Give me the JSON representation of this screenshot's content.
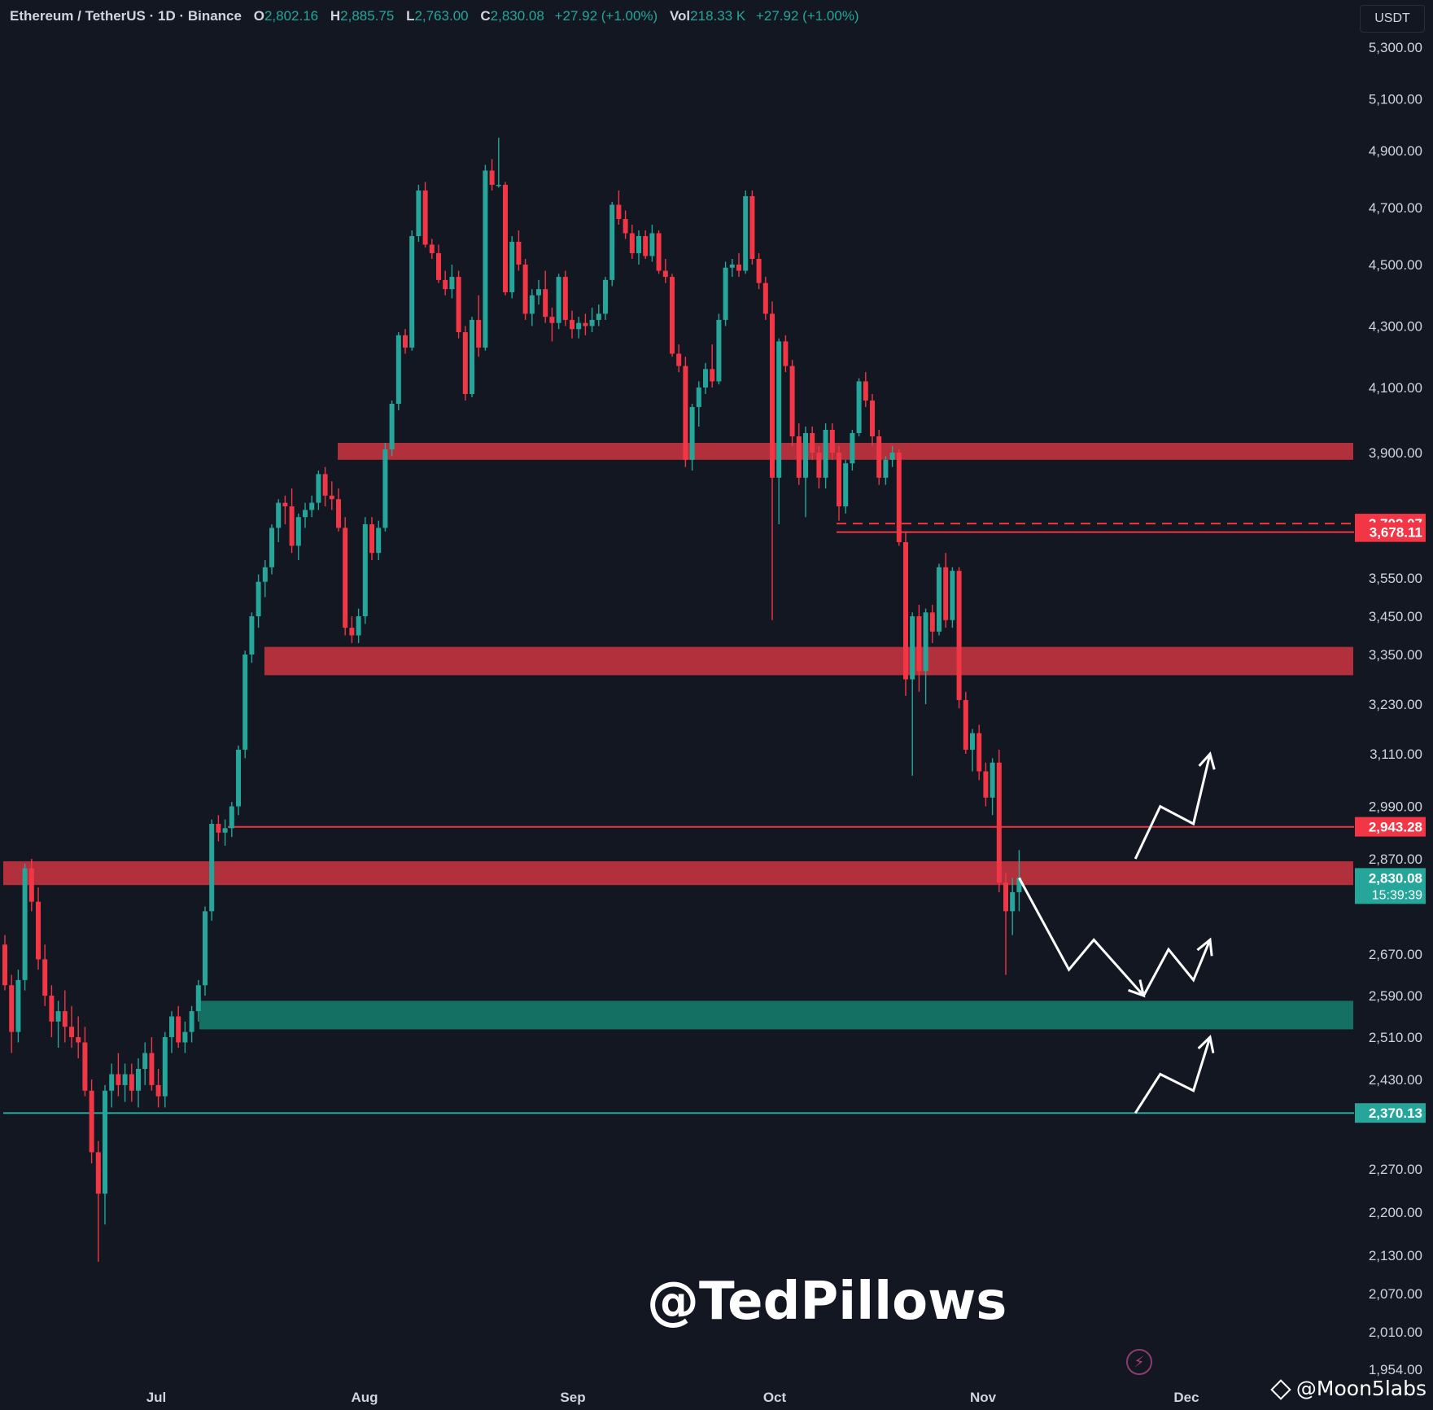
{
  "legend": {
    "symbol": "Ethereum / TetherUS · 1D · Binance",
    "open_label": "O",
    "open": "2,802.16",
    "high_label": "H",
    "high": "2,885.75",
    "low_label": "L",
    "low": "2,763.00",
    "close_label": "C",
    "close": "2,830.08",
    "change": "+27.92 (+1.00%)",
    "vol_label": "Vol",
    "vol": "218.33 K",
    "vol_change": "+27.92 (+1.00%)"
  },
  "unit": "USDT",
  "watermark": "@TedPillows",
  "source": "@Moon5labs",
  "colors": {
    "up": "#26a69a",
    "down": "#f23645",
    "resistance_zone": "#b2303b",
    "support_zone": "#137062",
    "background": "#131722"
  },
  "chart_data": {
    "type": "candlestick",
    "xlabel": "",
    "ylabel": "",
    "ylim": [
      1920,
      5400
    ],
    "y_ticks": [
      "5,300.00",
      "5,100.00",
      "4,900.00",
      "4,700.00",
      "4,500.00",
      "4,300.00",
      "4,100.00",
      "3,900.00",
      "3,550.00",
      "3,450.00",
      "3,350.00",
      "3,230.00",
      "3,110.00",
      "2,990.00",
      "2,870.00",
      "2,670.00",
      "2,590.00",
      "2,510.00",
      "2,430.00",
      "2,270.00",
      "2,200.00",
      "2,130.00",
      "2,070.00",
      "2,010.00",
      "1,954.00"
    ],
    "x_ticks": [
      "Jul",
      "Aug",
      "Sep",
      "Oct",
      "Nov",
      "Dec"
    ],
    "price_tags": [
      {
        "label": "3,702.07",
        "value": 3702.07,
        "kind": "down"
      },
      {
        "label": "3,678.11",
        "value": 3678.11,
        "kind": "down"
      },
      {
        "label": "2,943.28",
        "value": 2943.28,
        "kind": "down"
      },
      {
        "label": "2,830.08",
        "value": 2830.08,
        "kind": "up",
        "countdown": "15:39:39"
      },
      {
        "label": "2,370.13",
        "value": 2370.13,
        "kind": "up"
      }
    ],
    "zones": [
      {
        "kind": "resistance",
        "low": 3880,
        "high": 3930,
        "start": "Jul 27"
      },
      {
        "kind": "resistance",
        "low": 3300,
        "high": 3370,
        "start": "Jul 12"
      },
      {
        "kind": "resistance",
        "low": 2815,
        "high": 2865,
        "start": "Jun 10"
      },
      {
        "kind": "support",
        "low": 2525,
        "high": 2580,
        "start": "Jul 2"
      }
    ],
    "hlines": [
      {
        "value": 3702,
        "style": "dashed",
        "color": "#f23645",
        "start": "Oct 9"
      },
      {
        "value": 3678,
        "style": "solid",
        "color": "#f23645",
        "start": "Oct 9"
      },
      {
        "value": 2943,
        "style": "solid",
        "color": "#f23645",
        "start": "Jul 4"
      },
      {
        "value": 2370,
        "style": "solid",
        "color": "#26a69a",
        "start": "Jun 10"
      }
    ],
    "projections": [
      {
        "color": "#ffffff",
        "points": [
          [
            2830,
            0
          ],
          [
            2640,
            6
          ],
          [
            2700,
            9
          ],
          [
            2590,
            15
          ]
        ]
      },
      {
        "color": "#ffffff",
        "points": [
          [
            2590,
            15
          ],
          [
            2680,
            18
          ],
          [
            2620,
            21
          ],
          [
            2700,
            23
          ]
        ]
      },
      {
        "color": "#ffffff",
        "points": [
          [
            2870,
            14
          ],
          [
            2990,
            17
          ],
          [
            2950,
            21
          ],
          [
            3110,
            23
          ]
        ]
      },
      {
        "color": "#ffffff",
        "points": [
          [
            2370,
            14
          ],
          [
            2440,
            17
          ],
          [
            2410,
            21
          ],
          [
            2510,
            23
          ]
        ]
      }
    ],
    "candles": [
      [
        2690,
        2710,
        2600,
        2610
      ],
      [
        2610,
        2630,
        2480,
        2520
      ],
      [
        2520,
        2640,
        2500,
        2620
      ],
      [
        2620,
        2860,
        2600,
        2850
      ],
      [
        2850,
        2870,
        2760,
        2780
      ],
      [
        2780,
        2810,
        2640,
        2660
      ],
      [
        2660,
        2690,
        2570,
        2590
      ],
      [
        2590,
        2610,
        2510,
        2540
      ],
      [
        2540,
        2580,
        2490,
        2560
      ],
      [
        2560,
        2600,
        2500,
        2530
      ],
      [
        2530,
        2570,
        2490,
        2510
      ],
      [
        2510,
        2550,
        2470,
        2500
      ],
      [
        2500,
        2530,
        2400,
        2410
      ],
      [
        2410,
        2430,
        2280,
        2300
      ],
      [
        2300,
        2320,
        2120,
        2230
      ],
      [
        2230,
        2420,
        2180,
        2410
      ],
      [
        2410,
        2460,
        2380,
        2440
      ],
      [
        2440,
        2480,
        2400,
        2420
      ],
      [
        2420,
        2460,
        2390,
        2440
      ],
      [
        2440,
        2460,
        2390,
        2410
      ],
      [
        2410,
        2470,
        2380,
        2450
      ],
      [
        2450,
        2500,
        2420,
        2480
      ],
      [
        2480,
        2510,
        2410,
        2420
      ],
      [
        2420,
        2450,
        2380,
        2400
      ],
      [
        2400,
        2520,
        2380,
        2510
      ],
      [
        2510,
        2560,
        2480,
        2550
      ],
      [
        2550,
        2570,
        2490,
        2500
      ],
      [
        2500,
        2540,
        2480,
        2520
      ],
      [
        2520,
        2570,
        2500,
        2560
      ],
      [
        2560,
        2620,
        2540,
        2610
      ],
      [
        2610,
        2770,
        2590,
        2760
      ],
      [
        2760,
        2960,
        2740,
        2950
      ],
      [
        2950,
        2970,
        2910,
        2930
      ],
      [
        2930,
        2960,
        2900,
        2940
      ],
      [
        2940,
        3000,
        2920,
        2990
      ],
      [
        2990,
        3130,
        2970,
        3120
      ],
      [
        3120,
        3360,
        3100,
        3350
      ],
      [
        3350,
        3460,
        3330,
        3450
      ],
      [
        3450,
        3560,
        3420,
        3540
      ],
      [
        3540,
        3600,
        3500,
        3580
      ],
      [
        3580,
        3700,
        3560,
        3690
      ],
      [
        3690,
        3770,
        3650,
        3760
      ],
      [
        3760,
        3780,
        3700,
        3750
      ],
      [
        3750,
        3800,
        3620,
        3640
      ],
      [
        3640,
        3730,
        3600,
        3720
      ],
      [
        3720,
        3760,
        3690,
        3740
      ],
      [
        3740,
        3780,
        3720,
        3760
      ],
      [
        3760,
        3850,
        3740,
        3840
      ],
      [
        3840,
        3860,
        3750,
        3780
      ],
      [
        3780,
        3820,
        3740,
        3770
      ],
      [
        3770,
        3800,
        3680,
        3690
      ],
      [
        3690,
        3720,
        3400,
        3420
      ],
      [
        3420,
        3450,
        3380,
        3400
      ],
      [
        3400,
        3470,
        3380,
        3450
      ],
      [
        3450,
        3720,
        3430,
        3700
      ],
      [
        3700,
        3720,
        3600,
        3620
      ],
      [
        3620,
        3710,
        3600,
        3690
      ],
      [
        3690,
        3930,
        3680,
        3910
      ],
      [
        3910,
        4060,
        3890,
        4050
      ],
      [
        4050,
        4280,
        4030,
        4270
      ],
      [
        4270,
        4290,
        4210,
        4230
      ],
      [
        4230,
        4620,
        4220,
        4600
      ],
      [
        4600,
        4780,
        4580,
        4760
      ],
      [
        4760,
        4790,
        4560,
        4570
      ],
      [
        4570,
        4590,
        4520,
        4540
      ],
      [
        4540,
        4570,
        4440,
        4450
      ],
      [
        4450,
        4480,
        4400,
        4420
      ],
      [
        4420,
        4500,
        4390,
        4460
      ],
      [
        4460,
        4480,
        4260,
        4280
      ],
      [
        4280,
        4300,
        4060,
        4080
      ],
      [
        4080,
        4330,
        4070,
        4320
      ],
      [
        4320,
        4400,
        4200,
        4230
      ],
      [
        4230,
        4850,
        4220,
        4830
      ],
      [
        4830,
        4870,
        4760,
        4780
      ],
      [
        4780,
        4950,
        4770,
        4780
      ],
      [
        4780,
        4790,
        4400,
        4410
      ],
      [
        4410,
        4600,
        4390,
        4580
      ],
      [
        4580,
        4620,
        4480,
        4500
      ],
      [
        4500,
        4520,
        4320,
        4340
      ],
      [
        4340,
        4420,
        4300,
        4400
      ],
      [
        4400,
        4450,
        4370,
        4420
      ],
      [
        4420,
        4480,
        4310,
        4330
      ],
      [
        4330,
        4360,
        4250,
        4310
      ],
      [
        4310,
        4470,
        4290,
        4460
      ],
      [
        4460,
        4480,
        4300,
        4320
      ],
      [
        4320,
        4350,
        4260,
        4290
      ],
      [
        4290,
        4330,
        4260,
        4310
      ],
      [
        4310,
        4340,
        4270,
        4300
      ],
      [
        4300,
        4360,
        4280,
        4320
      ],
      [
        4320,
        4370,
        4300,
        4340
      ],
      [
        4340,
        4460,
        4320,
        4450
      ],
      [
        4450,
        4720,
        4430,
        4710
      ],
      [
        4710,
        4760,
        4640,
        4660
      ],
      [
        4660,
        4690,
        4590,
        4610
      ],
      [
        4610,
        4640,
        4520,
        4540
      ],
      [
        4540,
        4620,
        4500,
        4600
      ],
      [
        4600,
        4620,
        4520,
        4530
      ],
      [
        4530,
        4640,
        4510,
        4610
      ],
      [
        4610,
        4620,
        4470,
        4480
      ],
      [
        4480,
        4520,
        4440,
        4460
      ],
      [
        4460,
        4470,
        4200,
        4210
      ],
      [
        4210,
        4240,
        4150,
        4170
      ],
      [
        4170,
        4200,
        3860,
        3880
      ],
      [
        3880,
        4050,
        3850,
        4040
      ],
      [
        4040,
        4120,
        3980,
        4100
      ],
      [
        4100,
        4180,
        4080,
        4160
      ],
      [
        4160,
        4240,
        4100,
        4120
      ],
      [
        4120,
        4340,
        4110,
        4320
      ],
      [
        4320,
        4510,
        4300,
        4490
      ],
      [
        4490,
        4520,
        4460,
        4500
      ],
      [
        4500,
        4540,
        4460,
        4480
      ],
      [
        4480,
        4760,
        4470,
        4740
      ],
      [
        4740,
        4760,
        4500,
        4520
      ],
      [
        4520,
        4540,
        4420,
        4440
      ],
      [
        4440,
        4460,
        4320,
        4340
      ],
      [
        4340,
        4380,
        3440,
        3830
      ],
      [
        3830,
        4260,
        3700,
        4250
      ],
      [
        4250,
        4270,
        4150,
        4170
      ],
      [
        4170,
        4190,
        3920,
        3950
      ],
      [
        3950,
        3990,
        3810,
        3830
      ],
      [
        3830,
        3980,
        3720,
        3960
      ],
      [
        3960,
        3980,
        3880,
        3900
      ],
      [
        3900,
        3920,
        3800,
        3830
      ],
      [
        3830,
        3990,
        3800,
        3970
      ],
      [
        3970,
        3990,
        3880,
        3900
      ],
      [
        3900,
        3920,
        3710,
        3750
      ],
      [
        3750,
        3880,
        3730,
        3870
      ],
      [
        3870,
        3970,
        3850,
        3960
      ],
      [
        3960,
        4130,
        3950,
        4120
      ],
      [
        4120,
        4150,
        4040,
        4060
      ],
      [
        4060,
        4080,
        3920,
        3950
      ],
      [
        3950,
        3970,
        3810,
        3830
      ],
      [
        3830,
        3890,
        3810,
        3880
      ],
      [
        3880,
        3920,
        3860,
        3900
      ],
      [
        3900,
        3910,
        3640,
        3650
      ],
      [
        3650,
        3680,
        3250,
        3290
      ],
      [
        3290,
        3460,
        3060,
        3450
      ],
      [
        3450,
        3480,
        3260,
        3310
      ],
      [
        3310,
        3470,
        3230,
        3460
      ],
      [
        3460,
        3480,
        3380,
        3410
      ],
      [
        3410,
        3590,
        3400,
        3580
      ],
      [
        3580,
        3620,
        3420,
        3440
      ],
      [
        3440,
        3580,
        3420,
        3570
      ],
      [
        3570,
        3580,
        3220,
        3240
      ],
      [
        3240,
        3260,
        3110,
        3120
      ],
      [
        3120,
        3170,
        3070,
        3160
      ],
      [
        3160,
        3180,
        3050,
        3070
      ],
      [
        3070,
        3090,
        2990,
        3010
      ],
      [
        3010,
        3100,
        2970,
        3090
      ],
      [
        3090,
        3120,
        2800,
        2820
      ],
      [
        2820,
        2840,
        2630,
        2760
      ],
      [
        2760,
        2830,
        2710,
        2800
      ],
      [
        2800,
        2890,
        2760,
        2830
      ]
    ]
  }
}
